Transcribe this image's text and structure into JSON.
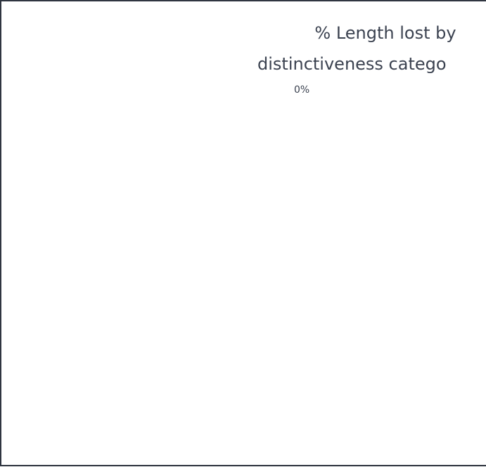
{
  "chart_data": {
    "type": "pie",
    "title": [
      "% Length lost by",
      "distinctiveness catego"
    ],
    "values": [
      0
    ],
    "value_labels": [
      "0%"
    ],
    "colors": [
      "#4472c4"
    ]
  }
}
